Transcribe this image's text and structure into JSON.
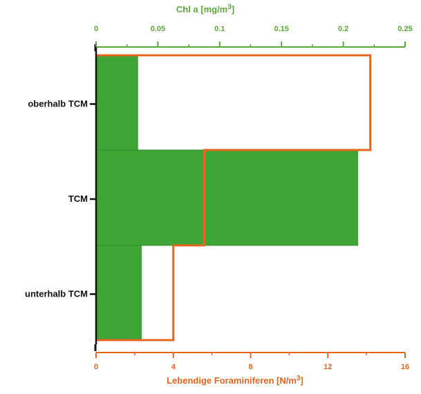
{
  "chart_data": {
    "type": "bar",
    "orientation": "horizontal",
    "categories": [
      "oberhalb TCM",
      "TCM",
      "unterhalb TCM"
    ],
    "series": [
      {
        "values": [
          0.034,
          0.212,
          0.037
        ],
        "color": "#3fa535",
        "style": "filled",
        "axis": "top"
      },
      {
        "values": [
          14.2,
          5.6,
          4.0
        ],
        "color": "#e8651e",
        "style": "step-outline",
        "axis": "bottom"
      }
    ],
    "top_axis": {
      "label_pre": "Chl a [mg/m",
      "label_sup": "3",
      "label_post": "]",
      "range": [
        0,
        0.25
      ],
      "ticks": [
        "0",
        "0.05",
        "0.1",
        "0.15",
        "0.2",
        "0.25"
      ],
      "tick_values": [
        0,
        0.05,
        0.1,
        0.15,
        0.2,
        0.25
      ],
      "color": "#5aa83a"
    },
    "bottom_axis": {
      "label_pre": "Lebendige Foraminiferen [N/m",
      "label_sup": "3",
      "label_post": "]",
      "range": [
        0,
        16
      ],
      "ticks": [
        "0",
        "4",
        "8",
        "12",
        "16"
      ],
      "tick_values": [
        0,
        4,
        8,
        12,
        16
      ],
      "color": "#e8651e"
    },
    "grid": false
  }
}
